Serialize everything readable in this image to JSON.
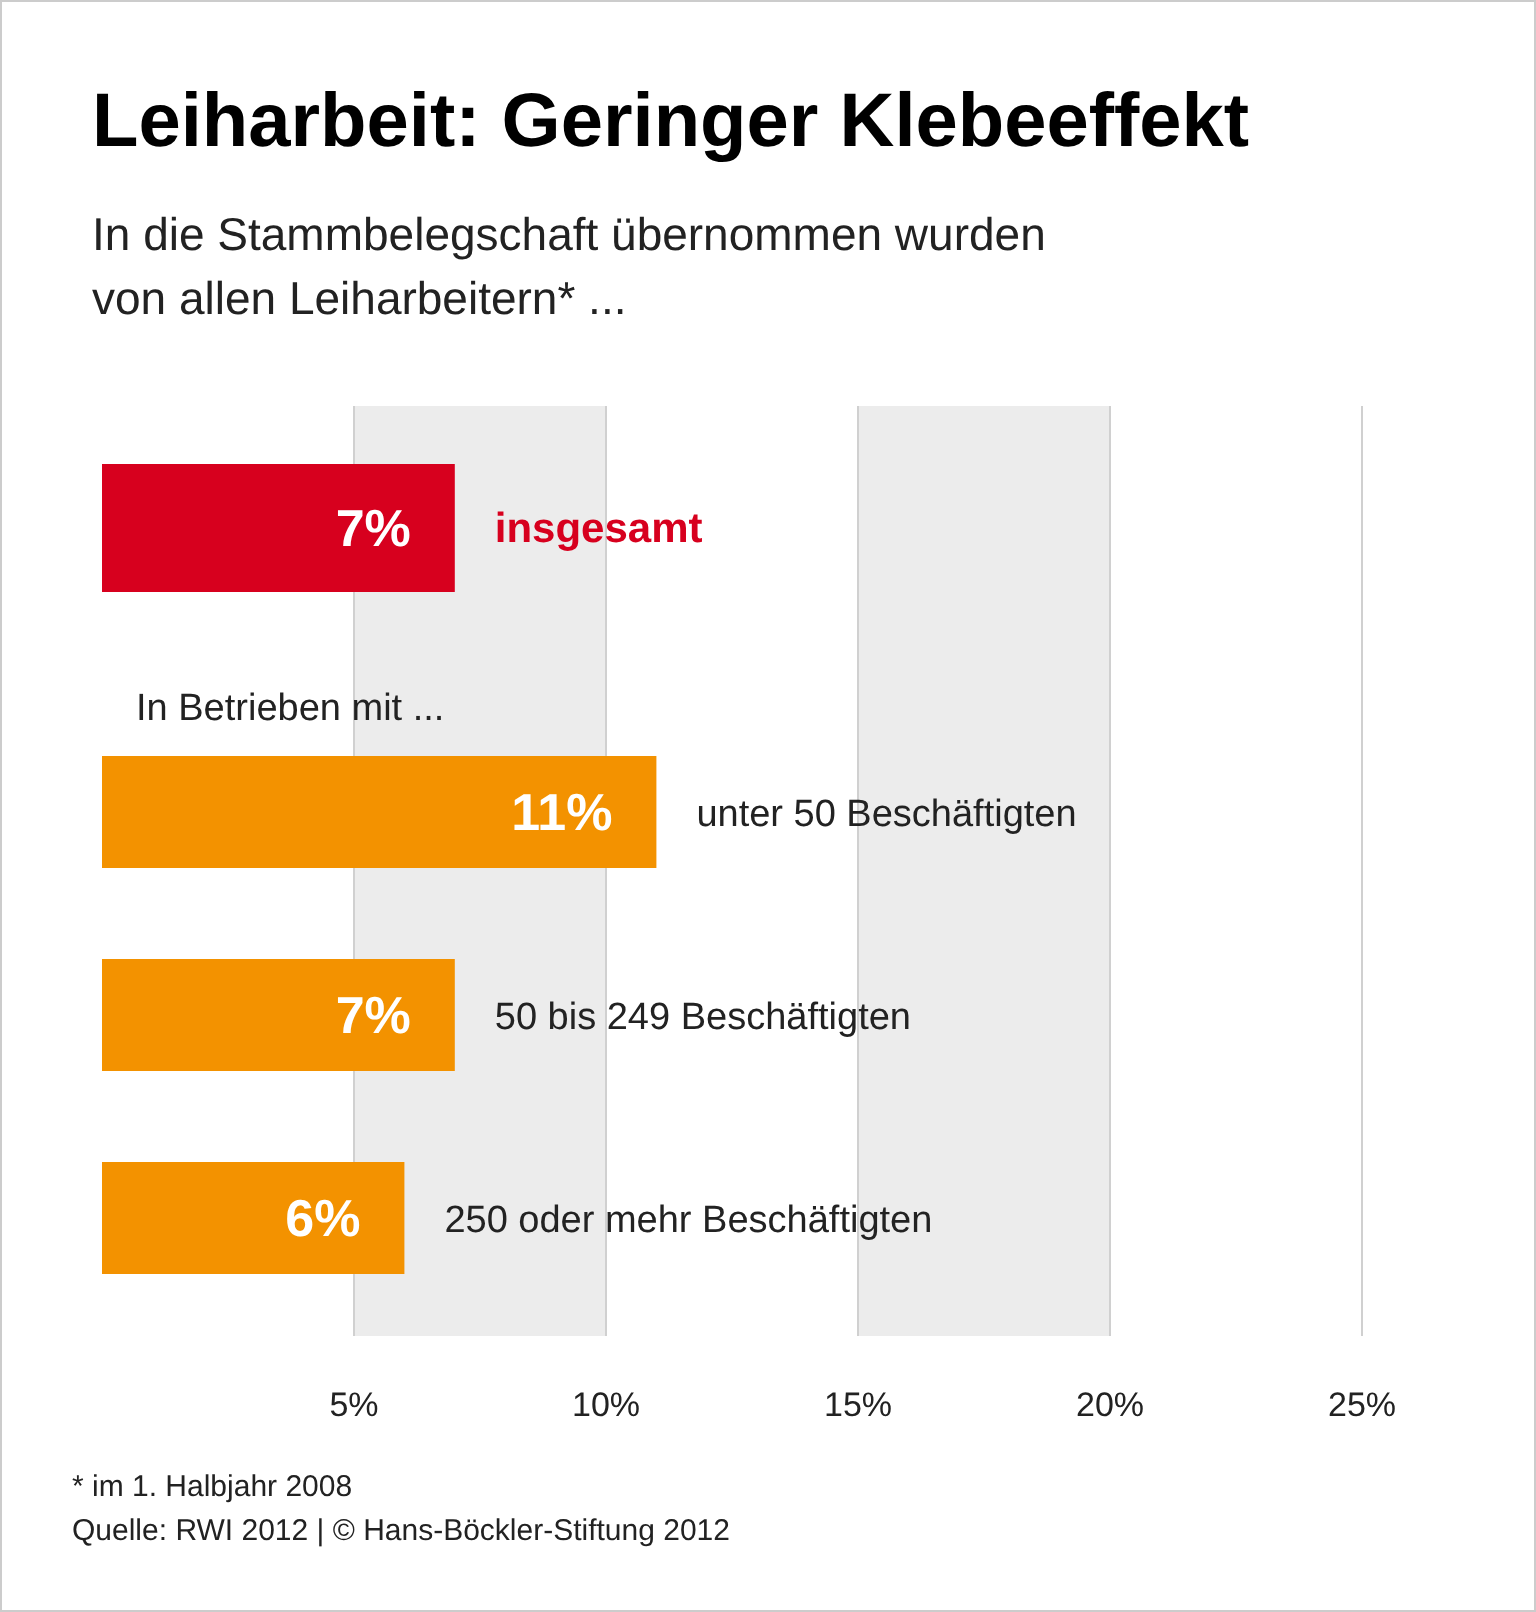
{
  "chart_data": {
    "type": "bar",
    "orientation": "horizontal",
    "title": "Leiharbeit: Geringer Klebeeffekt",
    "subtitle": "In die Stammbelegschaft übernommen wurden von allen Leiharbeitern* ...",
    "categories": [
      "insgesamt",
      "unter 50 Beschäftigten",
      "50 bis 249 Beschäftigten",
      "250 oder mehr Beschäftigten"
    ],
    "values": [
      7,
      11,
      7,
      6
    ],
    "colors": [
      "#d7001e",
      "#f39200",
      "#f39200",
      "#f39200"
    ],
    "value_labels": [
      "7%",
      "11%",
      "7%",
      "6%"
    ],
    "xlim": [
      0,
      25
    ],
    "xticks": [
      {
        "value": 5,
        "label": "5%"
      },
      {
        "value": 10,
        "label": "10%"
      },
      {
        "value": 15,
        "label": "15%"
      },
      {
        "value": 20,
        "label": "20%"
      },
      {
        "value": 25,
        "label": "25%"
      }
    ],
    "grid": "x",
    "bands": [
      {
        "axis": "x",
        "from": 5,
        "to": 10,
        "color": "#ececec"
      },
      {
        "axis": "x",
        "from": 15,
        "to": 20,
        "color": "#ececec"
      }
    ],
    "annotations": [
      "In Betrieben mit ...",
      "* im 1. Halbjahr 2008",
      "Quelle: RWI 2012 | © Hans-Böckler-Stiftung 2012"
    ]
  }
}
